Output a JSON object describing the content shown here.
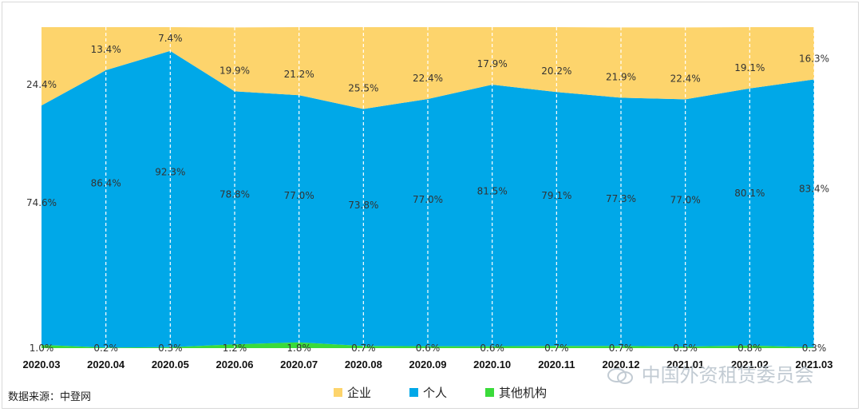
{
  "chart_data": {
    "type": "area",
    "stacked": true,
    "normalized": true,
    "categories": [
      "2020.03",
      "2020.04",
      "2020.05",
      "2020.06",
      "2020.07",
      "2020.08",
      "2020.09",
      "2020.10",
      "2020.11",
      "2020.12",
      "2021.01",
      "2021.02",
      "2021.03"
    ],
    "series": [
      {
        "name": "其他机构",
        "color": "#3adb3a",
        "values": [
          1.0,
          0.2,
          0.3,
          1.2,
          1.8,
          0.7,
          0.6,
          0.6,
          0.7,
          0.7,
          0.5,
          0.8,
          0.3
        ],
        "labels": [
          "1.0%",
          "0.2%",
          "0.3%",
          "1.2%",
          "1.8%",
          "0.7%",
          "0.6%",
          "0.6%",
          "0.7%",
          "0.7%",
          "0.5%",
          "0.8%",
          "0.3%"
        ]
      },
      {
        "name": "个人",
        "color": "#00a8e8",
        "values": [
          74.6,
          86.4,
          92.3,
          78.8,
          77.0,
          73.8,
          77.0,
          81.5,
          79.1,
          77.3,
          77.0,
          80.1,
          83.4
        ],
        "labels": [
          "74.6%",
          "86.4%",
          "92.3%",
          "78.8%",
          "77.0%",
          "73.8%",
          "77.0%",
          "81.5%",
          "79.1%",
          "77.3%",
          "77.0%",
          "80.1%",
          "83.4%"
        ]
      },
      {
        "name": "企业",
        "color": "#fdd46c",
        "values": [
          24.4,
          13.4,
          7.4,
          19.9,
          21.2,
          25.5,
          22.4,
          17.9,
          20.2,
          21.9,
          22.4,
          19.1,
          16.3
        ],
        "labels": [
          "24.4%",
          "13.4%",
          "7.4%",
          "19.9%",
          "21.2%",
          "25.5%",
          "22.4%",
          "17.9%",
          "20.2%",
          "21.9%",
          "22.4%",
          "19.1%",
          "16.3%"
        ]
      }
    ],
    "legend": [
      "企业",
      "个人",
      "其他机构"
    ],
    "legend_position": "bottom",
    "ylim": [
      0,
      100
    ],
    "vertical_dashed_gridlines": true
  },
  "source_text": "数据来源：中登网",
  "watermark_text": "中国外资租赁委员会"
}
